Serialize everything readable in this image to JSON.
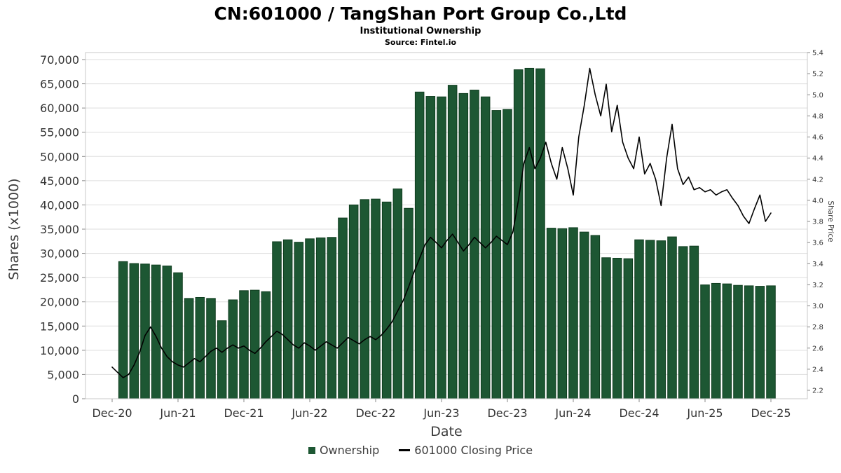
{
  "header": {
    "title": "CN:601000 / TangShan Port Group Co.,Ltd",
    "subtitle": "Institutional Ownership",
    "source": "Source: Fintel.io"
  },
  "legend": {
    "ownership_label": "Ownership",
    "price_label": "601000 Closing Price"
  },
  "chart_data": {
    "type": "bar",
    "title": "CN:601000 / TangShan Port Group Co.,Ltd",
    "subtitle": "Institutional Ownership",
    "xlabel": "Date",
    "ylabel_left": "Shares (x1000)",
    "ylabel_right": "Share Price",
    "grid": true,
    "legend_position": "bottom",
    "x_tick_labels": [
      "Dec-20",
      "Jun-21",
      "Dec-21",
      "Jun-22",
      "Dec-22",
      "Jun-23",
      "Dec-23",
      "Jun-24",
      "Dec-24",
      "Jun-25",
      "Dec-25"
    ],
    "left_axis": {
      "min": 0,
      "max": 70000,
      "step": 5000,
      "tick_labels": [
        "0",
        "5,000",
        "10,000",
        "15,000",
        "20,000",
        "25,000",
        "30,000",
        "35,000",
        "40,000",
        "45,000",
        "50,000",
        "55,000",
        "60,000",
        "65,000",
        "70,000"
      ]
    },
    "right_axis": {
      "min": 2.2,
      "max": 5.4,
      "step": 0.2
    },
    "bars": {
      "name": "Ownership",
      "start_month": "Jan-21",
      "interval": "monthly",
      "values": [
        28300,
        27900,
        27800,
        27600,
        27400,
        26000,
        20700,
        20900,
        20700,
        16100,
        20400,
        22300,
        22400,
        22100,
        32400,
        32800,
        32300,
        33000,
        33200,
        33300,
        37300,
        40000,
        41100,
        41200,
        40600,
        43300,
        39300,
        63300,
        62400,
        62300,
        64700,
        63000,
        63700,
        62300,
        59500,
        59700,
        67900,
        68200,
        68100,
        35200,
        35100,
        35300,
        34400,
        33700,
        29100,
        29000,
        28900,
        32800,
        32700,
        32600,
        33400,
        31400,
        31500,
        23500,
        23800,
        23700,
        23400,
        23300,
        23200,
        23300
      ]
    },
    "line": {
      "name": "601000 Closing Price",
      "x_start": "Dec-20",
      "x_end": "Dec-25",
      "values": [
        2.42,
        2.37,
        2.32,
        2.35,
        2.44,
        2.56,
        2.72,
        2.8,
        2.71,
        2.6,
        2.52,
        2.47,
        2.44,
        2.42,
        2.46,
        2.5,
        2.47,
        2.52,
        2.57,
        2.6,
        2.56,
        2.6,
        2.63,
        2.6,
        2.62,
        2.58,
        2.55,
        2.6,
        2.66,
        2.71,
        2.76,
        2.73,
        2.68,
        2.63,
        2.6,
        2.65,
        2.62,
        2.58,
        2.62,
        2.66,
        2.63,
        2.6,
        2.65,
        2.7,
        2.67,
        2.64,
        2.68,
        2.71,
        2.68,
        2.72,
        2.78,
        2.85,
        2.95,
        3.05,
        3.18,
        3.32,
        3.45,
        3.58,
        3.65,
        3.6,
        3.55,
        3.62,
        3.68,
        3.6,
        3.52,
        3.58,
        3.65,
        3.6,
        3.55,
        3.6,
        3.66,
        3.62,
        3.58,
        3.7,
        4.0,
        4.35,
        4.5,
        4.3,
        4.4,
        4.55,
        4.35,
        4.2,
        4.5,
        4.3,
        4.05,
        4.6,
        4.9,
        5.25,
        5.0,
        4.8,
        5.1,
        4.65,
        4.9,
        4.55,
        4.4,
        4.3,
        4.6,
        4.25,
        4.35,
        4.2,
        3.95,
        4.4,
        4.72,
        4.3,
        4.15,
        4.22,
        4.1,
        4.12,
        4.08,
        4.1,
        4.05,
        4.08,
        4.1,
        4.02,
        3.95,
        3.85,
        3.78,
        3.92,
        4.05,
        3.8,
        3.88
      ]
    },
    "colors": {
      "bar": "#1d5733",
      "bar_border": "#0f3d1f",
      "line": "#000000",
      "grid": "#dddddd",
      "frame": "#c8c8c8",
      "tick": "#888888",
      "text": "#333333",
      "axis_title": "#3c3c3c"
    }
  }
}
